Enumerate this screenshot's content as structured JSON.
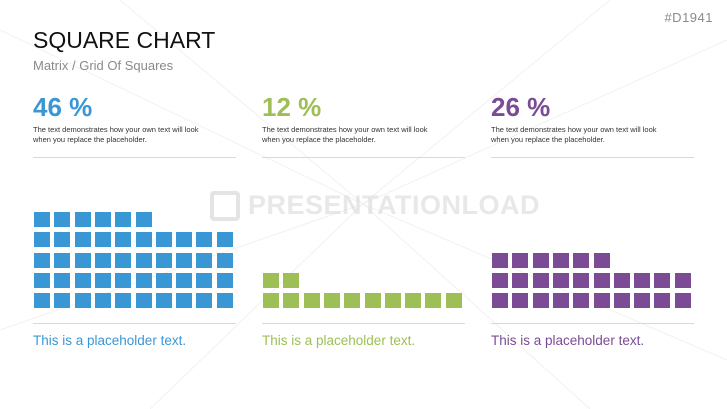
{
  "slide_code": "#D1941",
  "title": "SQUARE CHART",
  "subtitle": "Matrix / Grid Of Squares",
  "watermark": "PRESENTATIONLOAD",
  "colors": {
    "blue": "#3a97d5",
    "green": "#9dbf55",
    "purple": "#7b4b95"
  },
  "columns": [
    {
      "percent": "46 %",
      "color": "#3a97d5",
      "description_line1": "The text demonstrates how your own text will look",
      "description_line2": "when you replace the placeholder.",
      "caption": "This is a placeholder text."
    },
    {
      "percent": "12 %",
      "color": "#9dbf55",
      "description_line1": "The text demonstrates how your own text will look",
      "description_line2": "when you replace the placeholder.",
      "caption": "This is a placeholder text."
    },
    {
      "percent": "26 %",
      "color": "#7b4b95",
      "description_line1": "The text demonstrates how your own text will look",
      "description_line2": "when you replace the placeholder.",
      "caption": "This is a placeholder text."
    }
  ],
  "chart_data": {
    "type": "waffle",
    "grid_columns": 10,
    "series": [
      {
        "value_percent": 46,
        "squares": 46,
        "color": "#3a97d5"
      },
      {
        "value_percent": 12,
        "squares": 12,
        "color": "#9dbf55"
      },
      {
        "value_percent": 26,
        "squares": 26,
        "color": "#7b4b95"
      }
    ]
  }
}
